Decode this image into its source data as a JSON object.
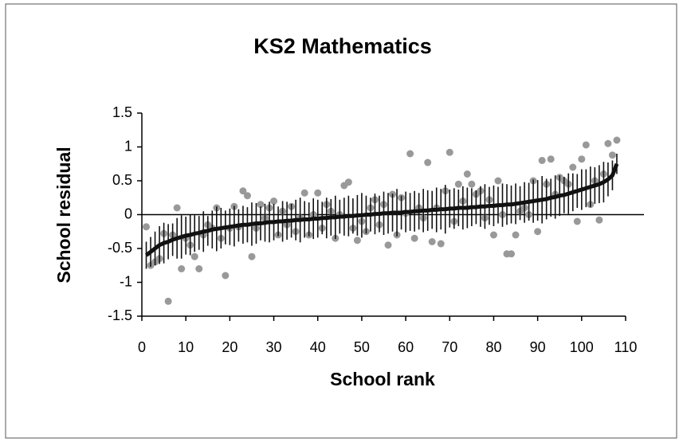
{
  "chart_data": {
    "type": "caterpillar",
    "title": "KS2 Mathematics",
    "x_label": "School rank",
    "y_label": "School residual",
    "x": [
      1,
      2,
      3,
      4,
      5,
      6,
      7,
      8,
      9,
      10,
      11,
      12,
      13,
      14,
      15,
      16,
      17,
      18,
      19,
      20,
      21,
      22,
      23,
      24,
      25,
      26,
      27,
      28,
      29,
      30,
      31,
      32,
      33,
      34,
      35,
      36,
      37,
      38,
      39,
      40,
      41,
      42,
      43,
      44,
      45,
      46,
      47,
      48,
      49,
      50,
      51,
      52,
      53,
      54,
      55,
      56,
      57,
      58,
      59,
      60,
      61,
      62,
      63,
      64,
      65,
      66,
      67,
      68,
      69,
      70,
      71,
      72,
      73,
      74,
      75,
      76,
      77,
      78,
      79,
      80,
      81,
      82,
      83,
      84,
      85,
      86,
      87,
      88,
      89,
      90,
      91,
      92,
      93,
      94,
      95,
      96,
      97,
      98,
      99,
      100,
      101,
      102,
      103,
      104,
      105,
      106,
      107,
      108
    ],
    "series": [
      {
        "color": "#111111",
        "values": [
          -0.6,
          -0.55,
          -0.5,
          -0.45,
          -0.42,
          -0.4,
          -0.37,
          -0.35,
          -0.33,
          -0.31,
          -0.3,
          -0.28,
          -0.27,
          -0.25,
          -0.24,
          -0.22,
          -0.21,
          -0.2,
          -0.19,
          -0.18,
          -0.17,
          -0.16,
          -0.15,
          -0.15,
          -0.14,
          -0.13,
          -0.13,
          -0.12,
          -0.11,
          -0.11,
          -0.1,
          -0.1,
          -0.09,
          -0.09,
          -0.08,
          -0.08,
          -0.07,
          -0.07,
          -0.06,
          -0.06,
          -0.05,
          -0.05,
          -0.04,
          -0.04,
          -0.03,
          -0.03,
          -0.02,
          -0.02,
          -0.01,
          -0.01,
          0,
          0,
          0.01,
          0.01,
          0.02,
          0.02,
          0.03,
          0.03,
          0.03,
          0.04,
          0.04,
          0.05,
          0.05,
          0.06,
          0.06,
          0.07,
          0.07,
          0.08,
          0.08,
          0.09,
          0.09,
          0.1,
          0.1,
          0.1,
          0.11,
          0.11,
          0.12,
          0.12,
          0.13,
          0.13,
          0.14,
          0.14,
          0.15,
          0.15,
          0.16,
          0.17,
          0.18,
          0.19,
          0.2,
          0.21,
          0.22,
          0.23,
          0.25,
          0.26,
          0.28,
          0.29,
          0.31,
          0.33,
          0.35,
          0.37,
          0.39,
          0.41,
          0.43,
          0.45,
          0.48,
          0.52,
          0.58,
          0.75
        ],
        "errors": [
          0.2,
          0.22,
          0.25,
          0.28,
          0.3,
          0.26,
          0.24,
          0.3,
          0.32,
          0.28,
          0.3,
          0.27,
          0.25,
          0.3,
          0.22,
          0.28,
          0.33,
          0.3,
          0.25,
          0.27,
          0.3,
          0.24,
          0.28,
          0.26,
          0.32,
          0.3,
          0.25,
          0.28,
          0.3,
          0.27,
          0.22,
          0.3,
          0.28,
          0.25,
          0.3,
          0.33,
          0.27,
          0.25,
          0.3,
          0.28,
          0.24,
          0.3,
          0.27,
          0.32,
          0.25,
          0.28,
          0.3,
          0.26,
          0.3,
          0.33,
          0.28,
          0.25,
          0.3,
          0.27,
          0.32,
          0.3,
          0.28,
          0.35,
          0.25,
          0.3,
          0.28,
          0.3,
          0.27,
          0.32,
          0.3,
          0.28,
          0.33,
          0.3,
          0.36,
          0.28,
          0.3,
          0.27,
          0.32,
          0.3,
          0.28,
          0.25,
          0.3,
          0.33,
          0.28,
          0.3,
          0.27,
          0.32,
          0.3,
          0.28,
          0.3,
          0.25,
          0.3,
          0.28,
          0.32,
          0.3,
          0.35,
          0.3,
          0.28,
          0.32,
          0.3,
          0.27,
          0.3,
          0.28,
          0.25,
          0.3,
          0.28,
          0.3,
          0.27,
          0.28,
          0.3,
          0.25,
          0.22,
          0.15
        ]
      },
      {
        "color": "#999999",
        "values": [
          -0.18,
          -0.75,
          -0.7,
          -0.65,
          -0.28,
          -1.28,
          -0.3,
          0.1,
          -0.8,
          -0.35,
          -0.45,
          -0.62,
          -0.8,
          -0.3,
          -0.15,
          -0.2,
          0.1,
          -0.35,
          -0.9,
          -0.2,
          0.12,
          -0.18,
          0.35,
          0.28,
          -0.62,
          -0.2,
          0.15,
          -0.05,
          0.1,
          0.2,
          -0.3,
          0.05,
          -0.15,
          0.12,
          -0.25,
          -0.05,
          0.32,
          -0.3,
          0,
          0.32,
          -0.2,
          0.15,
          0.05,
          -0.35,
          0,
          0.43,
          0.48,
          -0.2,
          -0.38,
          -0.1,
          -0.25,
          0.1,
          0.22,
          -0.15,
          0.15,
          -0.45,
          0.3,
          -0.3,
          0.25,
          0.02,
          0.9,
          -0.35,
          0.1,
          -0.05,
          0.77,
          -0.4,
          0.1,
          -0.43,
          0.35,
          0.92,
          -0.1,
          0.45,
          0.2,
          0.6,
          0.45,
          0.3,
          0.35,
          -0.05,
          0.22,
          -0.3,
          0.5,
          0,
          -0.58,
          -0.58,
          -0.3,
          0.05,
          0.1,
          0,
          0.5,
          -0.25,
          0.8,
          0.45,
          0.82,
          0.3,
          0.55,
          0.5,
          0.45,
          0.7,
          -0.1,
          0.82,
          1.03,
          0.15,
          0.5,
          -0.08,
          0.6,
          1.05,
          0.88,
          1.1
        ]
      }
    ],
    "xlim": [
      0,
      110
    ],
    "xticks": [
      0,
      10,
      20,
      30,
      40,
      50,
      60,
      70,
      80,
      90,
      100,
      110
    ],
    "ylim": [
      -1.5,
      1.5
    ],
    "yticks": [
      1.5,
      1,
      0.5,
      0,
      -0.5,
      -1,
      -1.5
    ]
  }
}
